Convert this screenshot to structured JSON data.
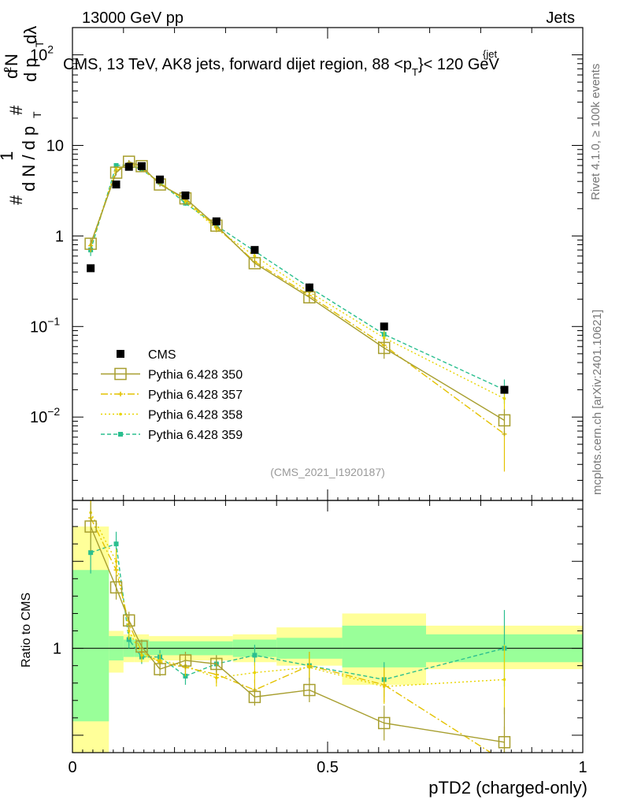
{
  "header": {
    "energy": "13000 GeV pp",
    "category": "Jets"
  },
  "side_text": {
    "rivet": "Rivet 4.1.0, ≥ 100k events",
    "mcplots": "mcplots.cern.ch [arXiv:2401.10621]"
  },
  "chart_data": {
    "type": "line",
    "title_parts": {
      "main": "CMS, 13 TeV, AK8 jets, forward dijet region, 88 <p",
      "sub": "T",
      "sup": "{jet",
      "tail": "}< 120 GeV"
    },
    "analysis_id": "(CMS_2021_I1920187)",
    "xlabel": "pTD2 (charged-only)",
    "ylabel_ratio": "Ratio to CMS",
    "ylabel_main": {
      "one": "1",
      "hash": "#",
      "dN": "d N / d p",
      "T": "T",
      "d2N": "d",
      "sq": "2",
      "N2": "N",
      "dp": "d p",
      "dlambda": "dλ"
    },
    "xlim": [
      0,
      1
    ],
    "ylim_main": [
      0.0012,
      200
    ],
    "ylim_ratio": [
      0.4,
      1.85
    ],
    "x_ticks": [
      {
        "v": 0,
        "label": "0"
      },
      {
        "v": 0.5,
        "label": "0.5"
      },
      {
        "v": 1,
        "label": "1"
      }
    ],
    "y_ticks_main": [
      {
        "v": 0.01,
        "base": "10",
        "exp": "−2"
      },
      {
        "v": 0.1,
        "base": "10",
        "exp": "−1"
      },
      {
        "v": 1,
        "base": "1",
        "exp": ""
      },
      {
        "v": 10,
        "base": "10",
        "exp": ""
      },
      {
        "v": 100,
        "base": "10",
        "exp": "2"
      }
    ],
    "y_ticks_ratio": [
      {
        "v": 1,
        "label": "1"
      }
    ],
    "bin_edges": [
      0.0,
      0.0714,
      0.1,
      0.1214,
      0.15,
      0.1929,
      0.25,
      0.3143,
      0.4,
      0.5286,
      0.6929,
      1.0
    ],
    "x": [
      0.0357,
      0.0857,
      0.1107,
      0.1357,
      0.1714,
      0.2214,
      0.2821,
      0.3571,
      0.4643,
      0.6107,
      0.8464
    ],
    "data": {
      "name": "CMS",
      "color": "#000000",
      "values": [
        0.44,
        3.7,
        5.8,
        5.9,
        4.2,
        2.8,
        1.45,
        0.7,
        0.27,
        0.1,
        0.02
      ],
      "band_inner": [
        [
          0.58,
          1.45
        ],
        [
          0.93,
          1.07
        ],
        [
          0.95,
          1.05
        ],
        [
          0.95,
          1.05
        ],
        [
          0.96,
          1.04
        ],
        [
          0.96,
          1.04
        ],
        [
          0.96,
          1.04
        ],
        [
          0.95,
          1.05
        ],
        [
          0.94,
          1.06
        ],
        [
          0.89,
          1.13
        ],
        [
          0.92,
          1.08
        ]
      ],
      "band_outer": [
        [
          0.3,
          1.7
        ],
        [
          0.86,
          1.1
        ],
        [
          0.92,
          1.08
        ],
        [
          0.92,
          1.08
        ],
        [
          0.93,
          1.07
        ],
        [
          0.93,
          1.07
        ],
        [
          0.93,
          1.07
        ],
        [
          0.92,
          1.08
        ],
        [
          0.9,
          1.12
        ],
        [
          0.79,
          1.2
        ],
        [
          0.88,
          1.13
        ]
      ]
    },
    "series": [
      {
        "name": "Pythia 6.428 350",
        "color": "#a79e2e",
        "dash": "",
        "marker": "open-square",
        "values": [
          0.82,
          5.0,
          6.6,
          5.9,
          3.7,
          2.6,
          1.3,
          0.5,
          0.21,
          0.058,
          0.0092
        ],
        "ratio": [
          1.7,
          1.35,
          1.16,
          1.01,
          0.88,
          0.93,
          0.91,
          0.72,
          0.76,
          0.57,
          0.46
        ],
        "ratio_err": [
          0.14,
          0.07,
          0.05,
          0.04,
          0.04,
          0.05,
          0.05,
          0.05,
          0.07,
          0.1,
          0.2
        ],
        "main_err": [
          0.12,
          0.35,
          0.3,
          0.25,
          0.2,
          0.15,
          0.1,
          0.05,
          0.03,
          0.014,
          0.003
        ]
      },
      {
        "name": "Pythia 6.428 357",
        "color": "#e4c200",
        "dash": "9,3,2,3",
        "marker": "star",
        "values": [
          0.78,
          5.2,
          6.4,
          5.6,
          3.8,
          2.5,
          1.25,
          0.52,
          0.22,
          0.062,
          0.0065
        ],
        "ratio": [
          1.75,
          1.45,
          1.14,
          0.98,
          0.92,
          0.89,
          0.85,
          0.76,
          0.9,
          0.79,
          0.35
        ],
        "ratio_err": [
          0.12,
          0.07,
          0.05,
          0.04,
          0.04,
          0.05,
          0.05,
          0.06,
          0.08,
          0.1,
          0.2
        ],
        "main_err": [
          0.12,
          0.35,
          0.3,
          0.25,
          0.2,
          0.15,
          0.1,
          0.05,
          0.03,
          0.014,
          0.004
        ]
      },
      {
        "name": "Pythia 6.428 358",
        "color": "#e8d400",
        "dash": "2,3",
        "marker": "dot",
        "values": [
          0.8,
          5.5,
          6.2,
          5.5,
          3.9,
          2.4,
          1.2,
          0.6,
          0.24,
          0.075,
          0.016
        ],
        "ratio": [
          1.78,
          1.5,
          1.1,
          0.96,
          0.93,
          0.9,
          0.83,
          0.86,
          0.89,
          0.78,
          0.82
        ],
        "ratio_err": [
          0.12,
          0.07,
          0.05,
          0.04,
          0.04,
          0.05,
          0.05,
          0.06,
          0.08,
          0.1,
          0.2
        ],
        "main_err": [
          0.12,
          0.35,
          0.3,
          0.25,
          0.2,
          0.15,
          0.1,
          0.05,
          0.03,
          0.014,
          0.005
        ]
      },
      {
        "name": "Pythia 6.428 359",
        "color": "#2bbf8f",
        "dash": "5,3",
        "marker": "filled-square",
        "values": [
          0.7,
          6.0,
          6.1,
          5.4,
          3.9,
          2.3,
          1.3,
          0.68,
          0.27,
          0.082,
          0.02
        ],
        "ratio": [
          1.55,
          1.6,
          1.05,
          0.95,
          0.95,
          0.84,
          0.91,
          0.96,
          0.9,
          0.82,
          1.0
        ],
        "ratio_err": [
          0.12,
          0.07,
          0.05,
          0.04,
          0.04,
          0.05,
          0.05,
          0.06,
          0.08,
          0.1,
          0.22
        ],
        "main_err": [
          0.1,
          0.35,
          0.3,
          0.25,
          0.2,
          0.15,
          0.1,
          0.05,
          0.03,
          0.014,
          0.006
        ]
      }
    ]
  }
}
